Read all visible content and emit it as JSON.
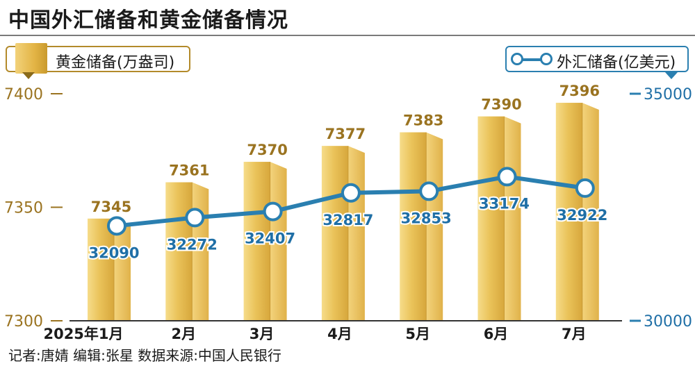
{
  "title": "中国外汇储备和黄金储备情况",
  "legend": {
    "gold": "黄金储备(万盎司)",
    "fx": "外汇储备(亿美元)"
  },
  "footer": "记者:唐婧   编辑:张星   数据来源:中国人民银行",
  "colors": {
    "gold_label": "#9a7320",
    "fx_line": "#2a7fb0",
    "fx_label": "#1f6fa6"
  },
  "chart_data": {
    "type": "bar+line",
    "categories": [
      "2025年1月",
      "2月",
      "3月",
      "4月",
      "5月",
      "6月",
      "7月"
    ],
    "series": [
      {
        "name": "黄金储备(万盎司)",
        "type": "bar",
        "axis": "left",
        "values": [
          7345,
          7361,
          7370,
          7377,
          7383,
          7390,
          7396
        ]
      },
      {
        "name": "外汇储备(亿美元)",
        "type": "line",
        "axis": "right",
        "values": [
          32090,
          32272,
          32407,
          32817,
          32853,
          33174,
          32922
        ]
      }
    ],
    "left_axis": {
      "ticks": [
        "7400",
        "7350",
        "7300"
      ],
      "range": [
        7300,
        7400
      ]
    },
    "right_axis": {
      "ticks": [
        "35000",
        "30000"
      ],
      "range": [
        30000,
        35000
      ]
    }
  }
}
